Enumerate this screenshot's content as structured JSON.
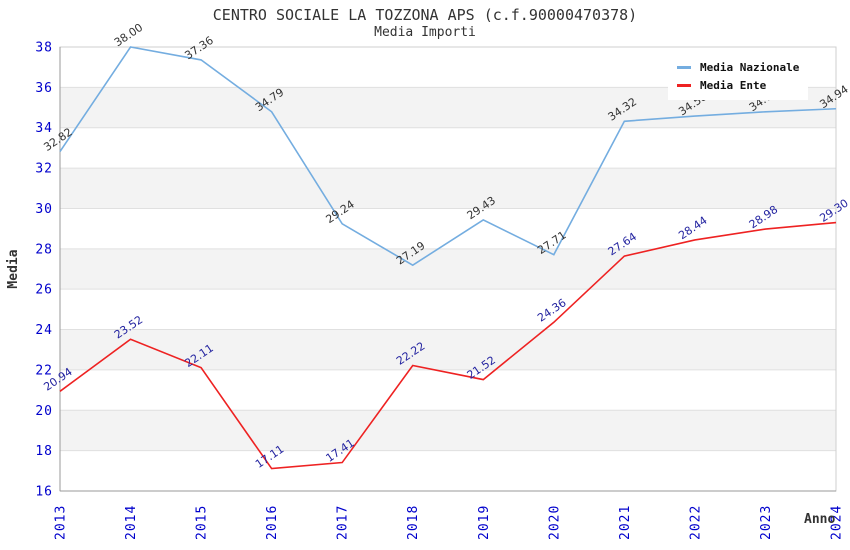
{
  "title": "CENTRO SOCIALE LA TOZZONA APS (c.f.90000470378)",
  "subtitle": "Media Importi",
  "axes": {
    "y_title": "Media",
    "x_title": "Anno",
    "tick_color": "#0000cc"
  },
  "legend": {
    "items": [
      {
        "label": "Media Nazionale",
        "color": "#74ade0"
      },
      {
        "label": "Media Ente",
        "color": "#ee2222"
      }
    ]
  },
  "chart_data": {
    "type": "line",
    "title": "CENTRO SOCIALE LA TOZZONA APS (c.f.90000470378)",
    "subtitle": "Media Importi",
    "xlabel": "Anno",
    "ylabel": "Media",
    "x": [
      2013,
      2014,
      2015,
      2016,
      2017,
      2018,
      2019,
      2020,
      2021,
      2022,
      2023,
      2024
    ],
    "ylim": [
      16,
      38
    ],
    "y_tick_step": 2,
    "grid": "horizontal-bands",
    "legend_position": "top-right",
    "series": [
      {
        "name": "Media Nazionale",
        "color": "#74ade0",
        "label_color": "#333333",
        "values": [
          32.82,
          38.0,
          37.36,
          34.79,
          29.24,
          27.19,
          29.43,
          27.71,
          34.32,
          34.58,
          34.79,
          34.94
        ]
      },
      {
        "name": "Media Ente",
        "color": "#ee2222",
        "label_color": "#2323a0",
        "values": [
          20.94,
          23.52,
          22.11,
          17.11,
          17.41,
          22.22,
          21.52,
          24.36,
          27.64,
          28.44,
          28.98,
          29.3
        ]
      }
    ]
  }
}
